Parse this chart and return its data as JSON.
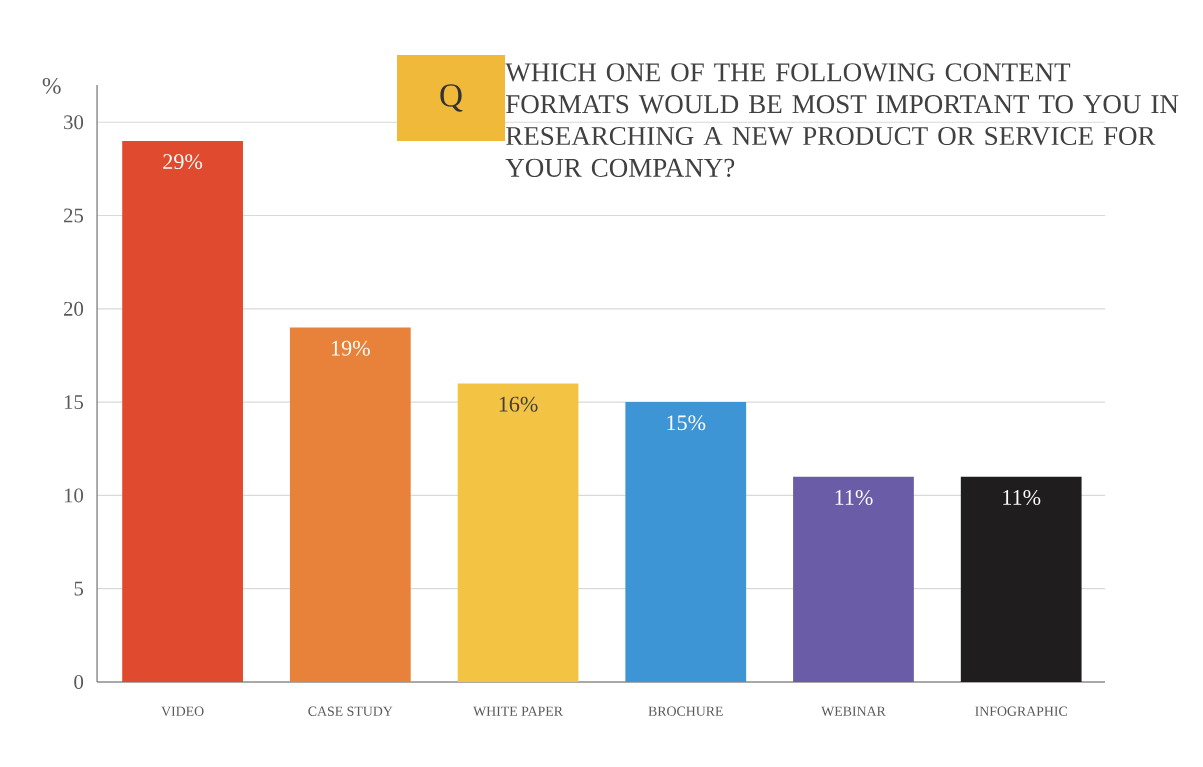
{
  "chart_data": {
    "type": "bar",
    "title": "WHICH ONE OF THE FOLLOWING CONTENT FORMATS WOULD BE MOST IMPORTANT TO YOU IN RESEARCHING A NEW PRODUCT OR SERVICE FOR YOUR COMPANY?",
    "ylabel": "%",
    "annotations": [
      "Q"
    ],
    "categories": [
      "VIDEO",
      "CASE STUDY",
      "WHITE PAPER",
      "BROCHURE",
      "WEBINAR",
      "INFOGRAPHIC"
    ],
    "values": [
      29,
      19,
      16,
      15,
      11,
      11
    ],
    "value_labels": [
      "29%",
      "19%",
      "16%",
      "15%",
      "11%",
      "11%"
    ],
    "colors": [
      "#e04a2e",
      "#e8823a",
      "#f3c443",
      "#3d95d6",
      "#6b5ca8",
      "#1f1d1d"
    ],
    "ylim": [
      0,
      32
    ],
    "yticks": [
      0,
      5,
      10,
      15,
      20,
      25,
      30
    ],
    "grid": "y"
  }
}
